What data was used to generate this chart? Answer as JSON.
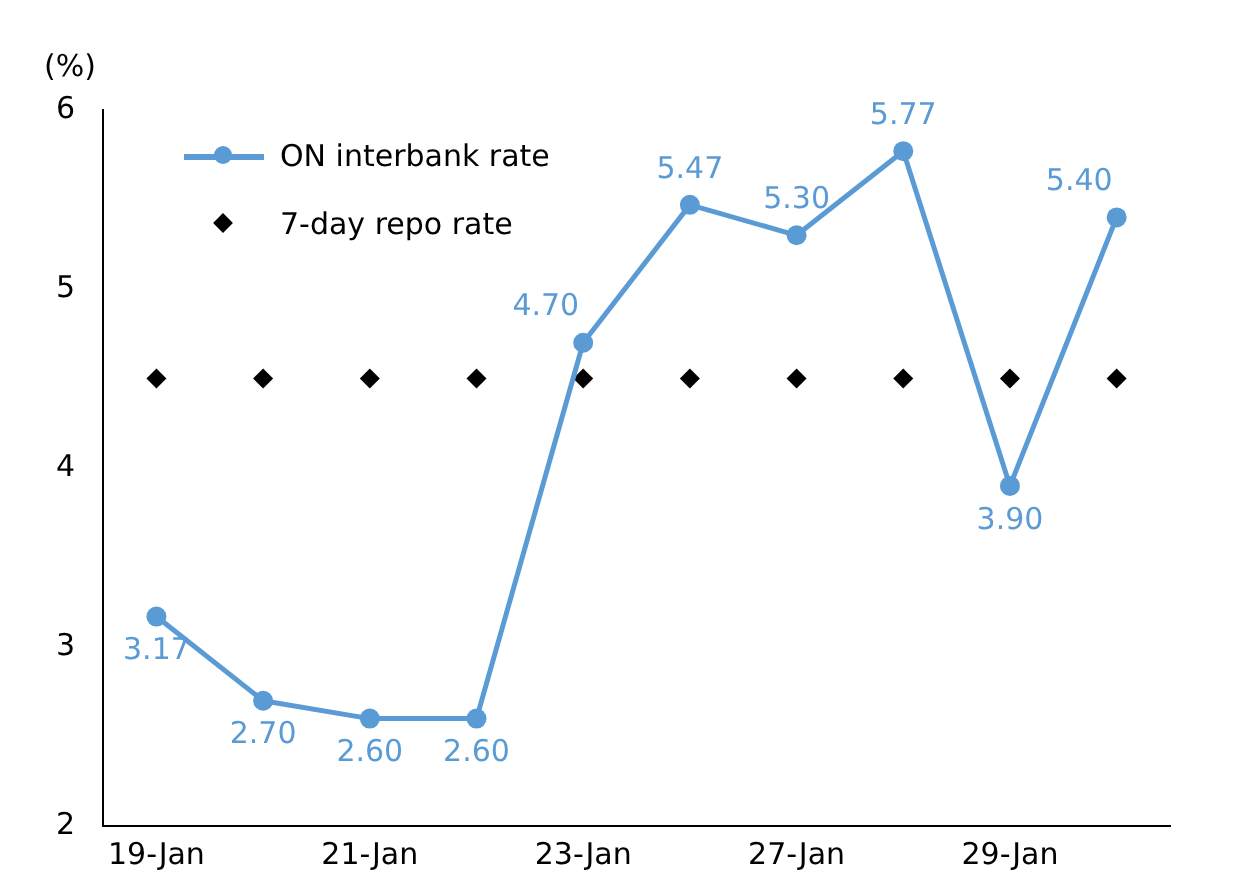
{
  "chart_data": {
    "type": "line",
    "ylabel": "(%)",
    "categories": [
      "19-Jan",
      null,
      "21-Jan",
      null,
      "23-Jan",
      null,
      "27-Jan",
      null,
      "29-Jan",
      null
    ],
    "series": [
      {
        "name": "ON interbank rate",
        "color": "#5b9bd5",
        "marker": "circle",
        "values": [
          3.17,
          2.7,
          2.6,
          2.6,
          4.7,
          5.47,
          5.3,
          5.77,
          3.9,
          5.4
        ],
        "value_labels": [
          "3.17",
          "2.70",
          "2.60",
          "2.60",
          "4.70",
          "5.47",
          "5.30",
          "5.77",
          "3.90",
          "5.40"
        ]
      },
      {
        "name": "7-day repo rate",
        "type": "scatter",
        "color": "#000000",
        "marker": "diamond",
        "values": [
          4.5,
          4.5,
          4.5,
          4.5,
          4.5,
          4.5,
          4.5,
          4.5,
          4.5,
          4.5
        ]
      }
    ],
    "ylim": [
      2,
      6
    ],
    "yticks": [
      2,
      3,
      4,
      5,
      6
    ],
    "grid": false,
    "legend": "top left"
  }
}
